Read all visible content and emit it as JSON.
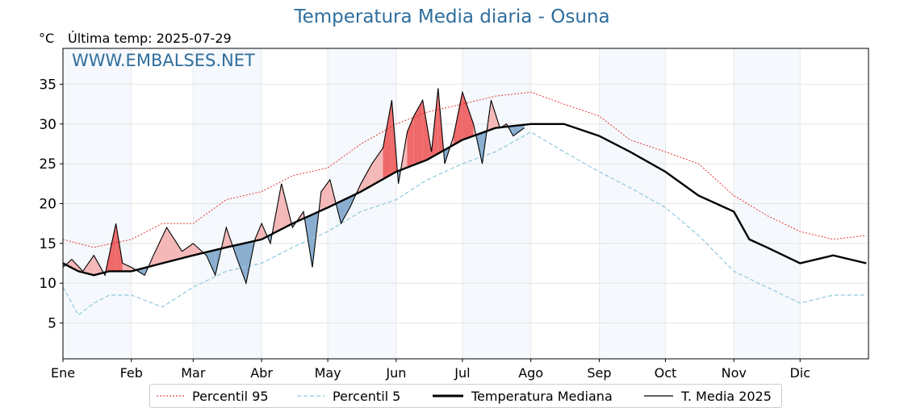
{
  "title": "Temperatura Media diaria - Osuna",
  "unit_label": "°C",
  "last_update": "Última temp: 2025-07-29",
  "watermark": "WWW.EMBALSES.NET",
  "colors": {
    "p95": "#e32222",
    "p5": "#8ec9dc",
    "median": "#000000",
    "current": "#000000",
    "above_fill": "#f4b8b8",
    "above_strong": "#ee6a6a",
    "below_fill": "#8aaed0",
    "band": "#dfe9f5",
    "title": "#2e6e9e"
  },
  "legend": {
    "p95": "Percentil 95",
    "p5": "Percentil 5",
    "median": "Temperatura Mediana",
    "current": "T. Media 2025"
  },
  "chart_data": {
    "type": "line",
    "title": "Temperatura Media diaria - Osuna",
    "ylabel": "°C",
    "ylim": [
      0.5,
      39.5
    ],
    "y_ticks": [
      5,
      10,
      15,
      20,
      25,
      30,
      35
    ],
    "x_ticks": [
      "Ene",
      "Feb",
      "Mar",
      "Abr",
      "May",
      "Jun",
      "Jul",
      "Ago",
      "Sep",
      "Oct",
      "Nov",
      "Dic"
    ],
    "month_start_days": [
      1,
      32,
      60,
      91,
      121,
      152,
      182,
      213,
      244,
      274,
      305,
      335
    ],
    "grid": true,
    "legend_position": "bottom",
    "series": [
      {
        "name": "Percentil 95",
        "style": "dotted-red",
        "x": [
          1,
          15,
          32,
          46,
          60,
          75,
          91,
          105,
          121,
          136,
          152,
          166,
          182,
          197,
          213,
          228,
          244,
          258,
          274,
          289,
          305,
          320,
          335,
          350,
          365
        ],
        "y": [
          15.5,
          14.5,
          15.5,
          17.5,
          17.5,
          20.5,
          21.5,
          23.5,
          24.5,
          27.5,
          30.0,
          31.5,
          32.5,
          33.5,
          34.0,
          32.5,
          31.0,
          28.0,
          26.5,
          25.0,
          21.0,
          18.5,
          16.5,
          15.5,
          16.0
        ]
      },
      {
        "name": "Percentil 5",
        "style": "dashed-lightblue",
        "x": [
          1,
          8,
          15,
          22,
          32,
          46,
          60,
          75,
          91,
          105,
          121,
          136,
          152,
          166,
          182,
          197,
          213,
          228,
          244,
          258,
          274,
          289,
          305,
          320,
          335,
          350,
          365
        ],
        "y": [
          9.5,
          6.0,
          7.5,
          8.5,
          8.5,
          7.0,
          9.5,
          11.5,
          12.5,
          14.5,
          16.5,
          19.0,
          20.5,
          23.0,
          25.0,
          26.5,
          29.0,
          26.5,
          24.0,
          22.0,
          19.5,
          16.0,
          11.5,
          9.5,
          7.5,
          8.5,
          8.5
        ]
      },
      {
        "name": "Temperatura Mediana",
        "style": "solid-thick",
        "x": [
          1,
          8,
          15,
          22,
          32,
          46,
          60,
          75,
          91,
          105,
          121,
          136,
          152,
          166,
          182,
          197,
          213,
          228,
          244,
          258,
          274,
          289,
          305,
          312,
          320,
          335,
          350,
          365
        ],
        "y": [
          12.5,
          11.5,
          11.0,
          11.5,
          11.5,
          12.5,
          13.5,
          14.5,
          15.5,
          17.5,
          19.5,
          21.5,
          24.0,
          25.5,
          28.0,
          29.5,
          30.0,
          30.0,
          28.5,
          26.5,
          24.0,
          21.0,
          19.0,
          15.5,
          14.5,
          12.5,
          13.5,
          12.5
        ]
      },
      {
        "name": "T. Media 2025",
        "style": "solid-thin",
        "x": [
          1,
          5,
          10,
          15,
          20,
          25,
          28,
          32,
          38,
          42,
          48,
          55,
          60,
          66,
          70,
          75,
          80,
          84,
          88,
          91,
          95,
          100,
          105,
          110,
          114,
          118,
          122,
          127,
          131,
          136,
          141,
          146,
          150,
          153,
          157,
          160,
          164,
          168,
          171,
          174,
          178,
          182,
          187,
          191,
          195,
          199,
          202,
          205,
          210
        ],
        "y": [
          12.0,
          13.0,
          11.5,
          13.5,
          11.0,
          17.5,
          12.5,
          12.0,
          11.0,
          13.5,
          17.0,
          14.0,
          15.0,
          13.5,
          11.0,
          17.0,
          13.0,
          10.0,
          15.5,
          17.5,
          15.0,
          22.5,
          17.0,
          19.0,
          12.0,
          21.5,
          23.0,
          17.5,
          19.5,
          22.5,
          25.0,
          27.0,
          33.0,
          22.5,
          29.0,
          31.0,
          33.0,
          26.5,
          34.5,
          25.0,
          28.5,
          34.0,
          30.0,
          25.0,
          33.0,
          29.5,
          30.0,
          28.5,
          29.5
        ]
      }
    ]
  }
}
